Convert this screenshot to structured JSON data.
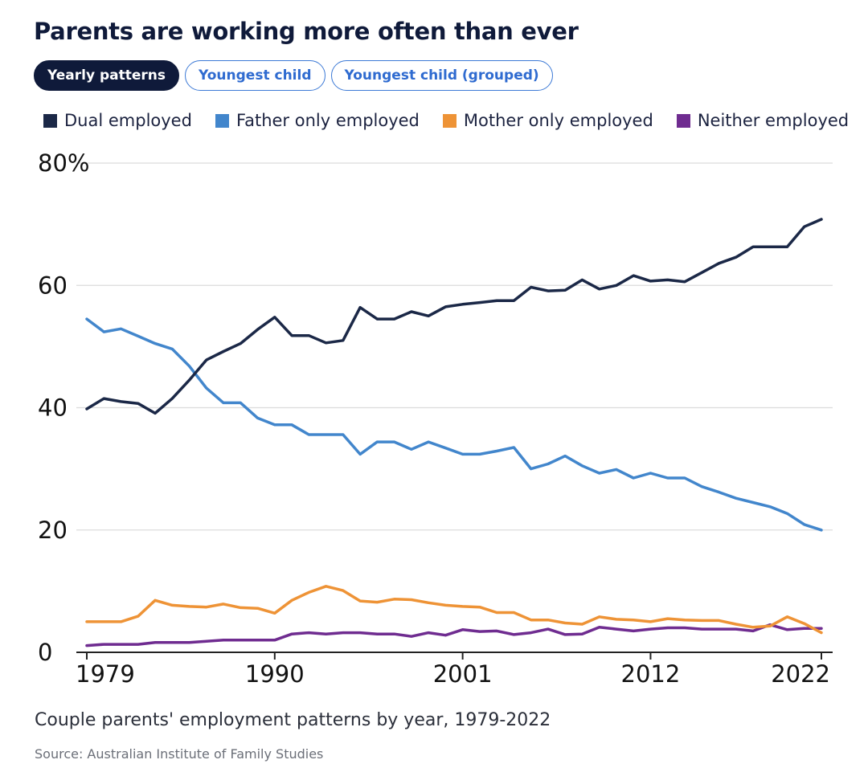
{
  "header": {
    "title": "Parents are working more often than ever",
    "tabs": [
      {
        "label": "Yearly patterns",
        "active": true
      },
      {
        "label": "Youngest child",
        "active": false
      },
      {
        "label": "Youngest child (grouped)",
        "active": false
      }
    ]
  },
  "footer": {
    "caption": "Couple parents' employment patterns by year, 1979-2022",
    "source": "Source: Australian Institute of Family Studies"
  },
  "chart_data": {
    "type": "line",
    "xlim": [
      1979,
      2022
    ],
    "ylim": [
      0,
      80
    ],
    "x_ticks": [
      1979,
      1990,
      2001,
      2012,
      2022
    ],
    "y_ticks": [
      0,
      20,
      40,
      60,
      80
    ],
    "y_tick_labels": [
      "0",
      "20",
      "40",
      "60",
      "80%"
    ],
    "grid": true,
    "legend_position": "top",
    "series": [
      {
        "name": "Dual employed",
        "color": "#1b2847",
        "points": [
          [
            1979,
            39.8
          ],
          [
            1980,
            41.5
          ],
          [
            1981,
            41
          ],
          [
            1982,
            40.7
          ],
          [
            1983,
            39.1
          ],
          [
            1984,
            41.5
          ],
          [
            1985,
            44.5
          ],
          [
            1986,
            47.8
          ],
          [
            1987,
            49.2
          ],
          [
            1988,
            50.5
          ],
          [
            1989,
            52.8
          ],
          [
            1990,
            54.8
          ],
          [
            1991,
            51.8
          ],
          [
            1992,
            51.8
          ],
          [
            1993,
            50.6
          ],
          [
            1994,
            51
          ],
          [
            1995,
            56.4
          ],
          [
            1996,
            54.5
          ],
          [
            1997,
            54.5
          ],
          [
            1998,
            55.7
          ],
          [
            1999,
            55
          ],
          [
            2000,
            56.5
          ],
          [
            2001,
            56.9
          ],
          [
            2002,
            57.2
          ],
          [
            2003,
            57.5
          ],
          [
            2004,
            57.5
          ],
          [
            2005,
            59.7
          ],
          [
            2006,
            59.1
          ],
          [
            2007,
            59.2
          ],
          [
            2008,
            60.9
          ],
          [
            2009,
            59.4
          ],
          [
            2010,
            60
          ],
          [
            2011,
            61.6
          ],
          [
            2012,
            60.7
          ],
          [
            2013,
            60.9
          ],
          [
            2014,
            60.6
          ],
          [
            2015,
            62.1
          ],
          [
            2016,
            63.6
          ],
          [
            2017,
            64.6
          ],
          [
            2018,
            66.3
          ],
          [
            2019,
            66.3
          ],
          [
            2020,
            66.3
          ],
          [
            2021,
            69.6
          ],
          [
            2022,
            70.8
          ]
        ]
      },
      {
        "name": "Father only employed",
        "color": "#4286cc",
        "points": [
          [
            1979,
            54.5
          ],
          [
            1980,
            52.4
          ],
          [
            1981,
            52.9
          ],
          [
            1982,
            51.7
          ],
          [
            1983,
            50.5
          ],
          [
            1984,
            49.6
          ],
          [
            1985,
            46.8
          ],
          [
            1986,
            43.2
          ],
          [
            1987,
            40.8
          ],
          [
            1988,
            40.8
          ],
          [
            1989,
            38.3
          ],
          [
            1990,
            37.2
          ],
          [
            1991,
            37.2
          ],
          [
            1992,
            35.6
          ],
          [
            1993,
            35.6
          ],
          [
            1994,
            35.6
          ],
          [
            1995,
            32.4
          ],
          [
            1996,
            34.4
          ],
          [
            1997,
            34.4
          ],
          [
            1998,
            33.2
          ],
          [
            1999,
            34.4
          ],
          [
            2000,
            33.4
          ],
          [
            2001,
            32.4
          ],
          [
            2002,
            32.4
          ],
          [
            2003,
            32.9
          ],
          [
            2004,
            33.5
          ],
          [
            2005,
            30
          ],
          [
            2006,
            30.8
          ],
          [
            2007,
            32.1
          ],
          [
            2008,
            30.5
          ],
          [
            2009,
            29.3
          ],
          [
            2010,
            29.9
          ],
          [
            2011,
            28.5
          ],
          [
            2012,
            29.3
          ],
          [
            2013,
            28.5
          ],
          [
            2014,
            28.5
          ],
          [
            2015,
            27.1
          ],
          [
            2016,
            26.2
          ],
          [
            2017,
            25.2
          ],
          [
            2018,
            24.5
          ],
          [
            2019,
            23.8
          ],
          [
            2020,
            22.7
          ],
          [
            2021,
            20.9
          ],
          [
            2022,
            20
          ]
        ]
      },
      {
        "name": "Mother only employed",
        "color": "#ee9336",
        "points": [
          [
            1979,
            5
          ],
          [
            1980,
            5
          ],
          [
            1981,
            5
          ],
          [
            1982,
            5.9
          ],
          [
            1983,
            8.5
          ],
          [
            1984,
            7.7
          ],
          [
            1985,
            7.5
          ],
          [
            1986,
            7.4
          ],
          [
            1987,
            7.9
          ],
          [
            1988,
            7.3
          ],
          [
            1989,
            7.2
          ],
          [
            1990,
            6.4
          ],
          [
            1991,
            8.5
          ],
          [
            1992,
            9.8
          ],
          [
            1993,
            10.8
          ],
          [
            1994,
            10.1
          ],
          [
            1995,
            8.4
          ],
          [
            1996,
            8.2
          ],
          [
            1997,
            8.7
          ],
          [
            1998,
            8.6
          ],
          [
            1999,
            8.1
          ],
          [
            2000,
            7.7
          ],
          [
            2001,
            7.5
          ],
          [
            2002,
            7.4
          ],
          [
            2003,
            6.5
          ],
          [
            2004,
            6.5
          ],
          [
            2005,
            5.3
          ],
          [
            2006,
            5.3
          ],
          [
            2007,
            4.8
          ],
          [
            2008,
            4.6
          ],
          [
            2009,
            5.8
          ],
          [
            2010,
            5.4
          ],
          [
            2011,
            5.3
          ],
          [
            2012,
            5
          ],
          [
            2013,
            5.5
          ],
          [
            2014,
            5.3
          ],
          [
            2015,
            5.2
          ],
          [
            2016,
            5.2
          ],
          [
            2017,
            4.6
          ],
          [
            2018,
            4.1
          ],
          [
            2019,
            4.3
          ],
          [
            2020,
            5.8
          ],
          [
            2021,
            4.7
          ],
          [
            2022,
            3.2
          ]
        ]
      },
      {
        "name": "Neither employed",
        "color": "#6f2c90",
        "points": [
          [
            1979,
            1.1
          ],
          [
            1980,
            1.3
          ],
          [
            1981,
            1.3
          ],
          [
            1982,
            1.3
          ],
          [
            1983,
            1.6
          ],
          [
            1984,
            1.6
          ],
          [
            1985,
            1.6
          ],
          [
            1986,
            1.8
          ],
          [
            1987,
            2
          ],
          [
            1988,
            2
          ],
          [
            1989,
            2
          ],
          [
            1990,
            2
          ],
          [
            1991,
            3
          ],
          [
            1992,
            3.2
          ],
          [
            1993,
            3
          ],
          [
            1994,
            3.2
          ],
          [
            1995,
            3.2
          ],
          [
            1996,
            3
          ],
          [
            1997,
            3
          ],
          [
            1998,
            2.6
          ],
          [
            1999,
            3.2
          ],
          [
            2000,
            2.8
          ],
          [
            2001,
            3.7
          ],
          [
            2002,
            3.4
          ],
          [
            2003,
            3.5
          ],
          [
            2004,
            2.9
          ],
          [
            2005,
            3.2
          ],
          [
            2006,
            3.8
          ],
          [
            2007,
            2.9
          ],
          [
            2008,
            3
          ],
          [
            2009,
            4.1
          ],
          [
            2010,
            3.8
          ],
          [
            2011,
            3.5
          ],
          [
            2012,
            3.8
          ],
          [
            2013,
            4
          ],
          [
            2014,
            4
          ],
          [
            2015,
            3.8
          ],
          [
            2016,
            3.8
          ],
          [
            2017,
            3.8
          ],
          [
            2018,
            3.5
          ],
          [
            2019,
            4.5
          ],
          [
            2020,
            3.7
          ],
          [
            2021,
            3.9
          ],
          [
            2022,
            3.9
          ]
        ]
      }
    ]
  }
}
